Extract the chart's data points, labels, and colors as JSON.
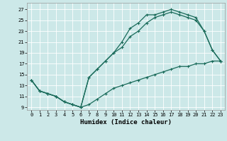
{
  "xlabel": "Humidex (Indice chaleur)",
  "bg_color": "#cce8e8",
  "line_color": "#1a6b5a",
  "grid_color": "#ffffff",
  "xlim": [
    -0.5,
    23.5
  ],
  "ylim": [
    8.5,
    28.2
  ],
  "xticks": [
    0,
    1,
    2,
    3,
    4,
    5,
    6,
    7,
    8,
    9,
    10,
    11,
    12,
    13,
    14,
    15,
    16,
    17,
    18,
    19,
    20,
    21,
    22,
    23
  ],
  "yticks": [
    9,
    11,
    13,
    15,
    17,
    19,
    21,
    23,
    25,
    27
  ],
  "line1_x": [
    0,
    1,
    2,
    3,
    4,
    5,
    6,
    7,
    8,
    9,
    10,
    11,
    12,
    13,
    14,
    15,
    16,
    17,
    18,
    19,
    20,
    21,
    22,
    23
  ],
  "line1_y": [
    14,
    12,
    11.5,
    11,
    10,
    9.5,
    9,
    9.5,
    10.5,
    11.5,
    12.5,
    13,
    13.5,
    14,
    14.5,
    15,
    15.5,
    16,
    16.5,
    16.5,
    17,
    17,
    17.5,
    17.5
  ],
  "line2_x": [
    0,
    1,
    2,
    3,
    4,
    5,
    6,
    7,
    8,
    9,
    10,
    11,
    12,
    13,
    14,
    15,
    16,
    17,
    18,
    19,
    20,
    21,
    22,
    23
  ],
  "line2_y": [
    14,
    12,
    11.5,
    11,
    10,
    9.5,
    9,
    14.5,
    16,
    17.5,
    19,
    21,
    23.5,
    24.5,
    26,
    26,
    26.5,
    27,
    26.5,
    26,
    25.5,
    23,
    19.5,
    17.5
  ],
  "line3_x": [
    0,
    1,
    2,
    3,
    4,
    5,
    6,
    7,
    8,
    9,
    10,
    11,
    12,
    13,
    14,
    15,
    16,
    17,
    18,
    19,
    20,
    21,
    22,
    23
  ],
  "line3_y": [
    14,
    12,
    11.5,
    11,
    10,
    9.5,
    9,
    14.5,
    16,
    17.5,
    19,
    20,
    22,
    23,
    24.5,
    25.5,
    26,
    26.5,
    26,
    25.5,
    25,
    23,
    19.5,
    17.5
  ]
}
